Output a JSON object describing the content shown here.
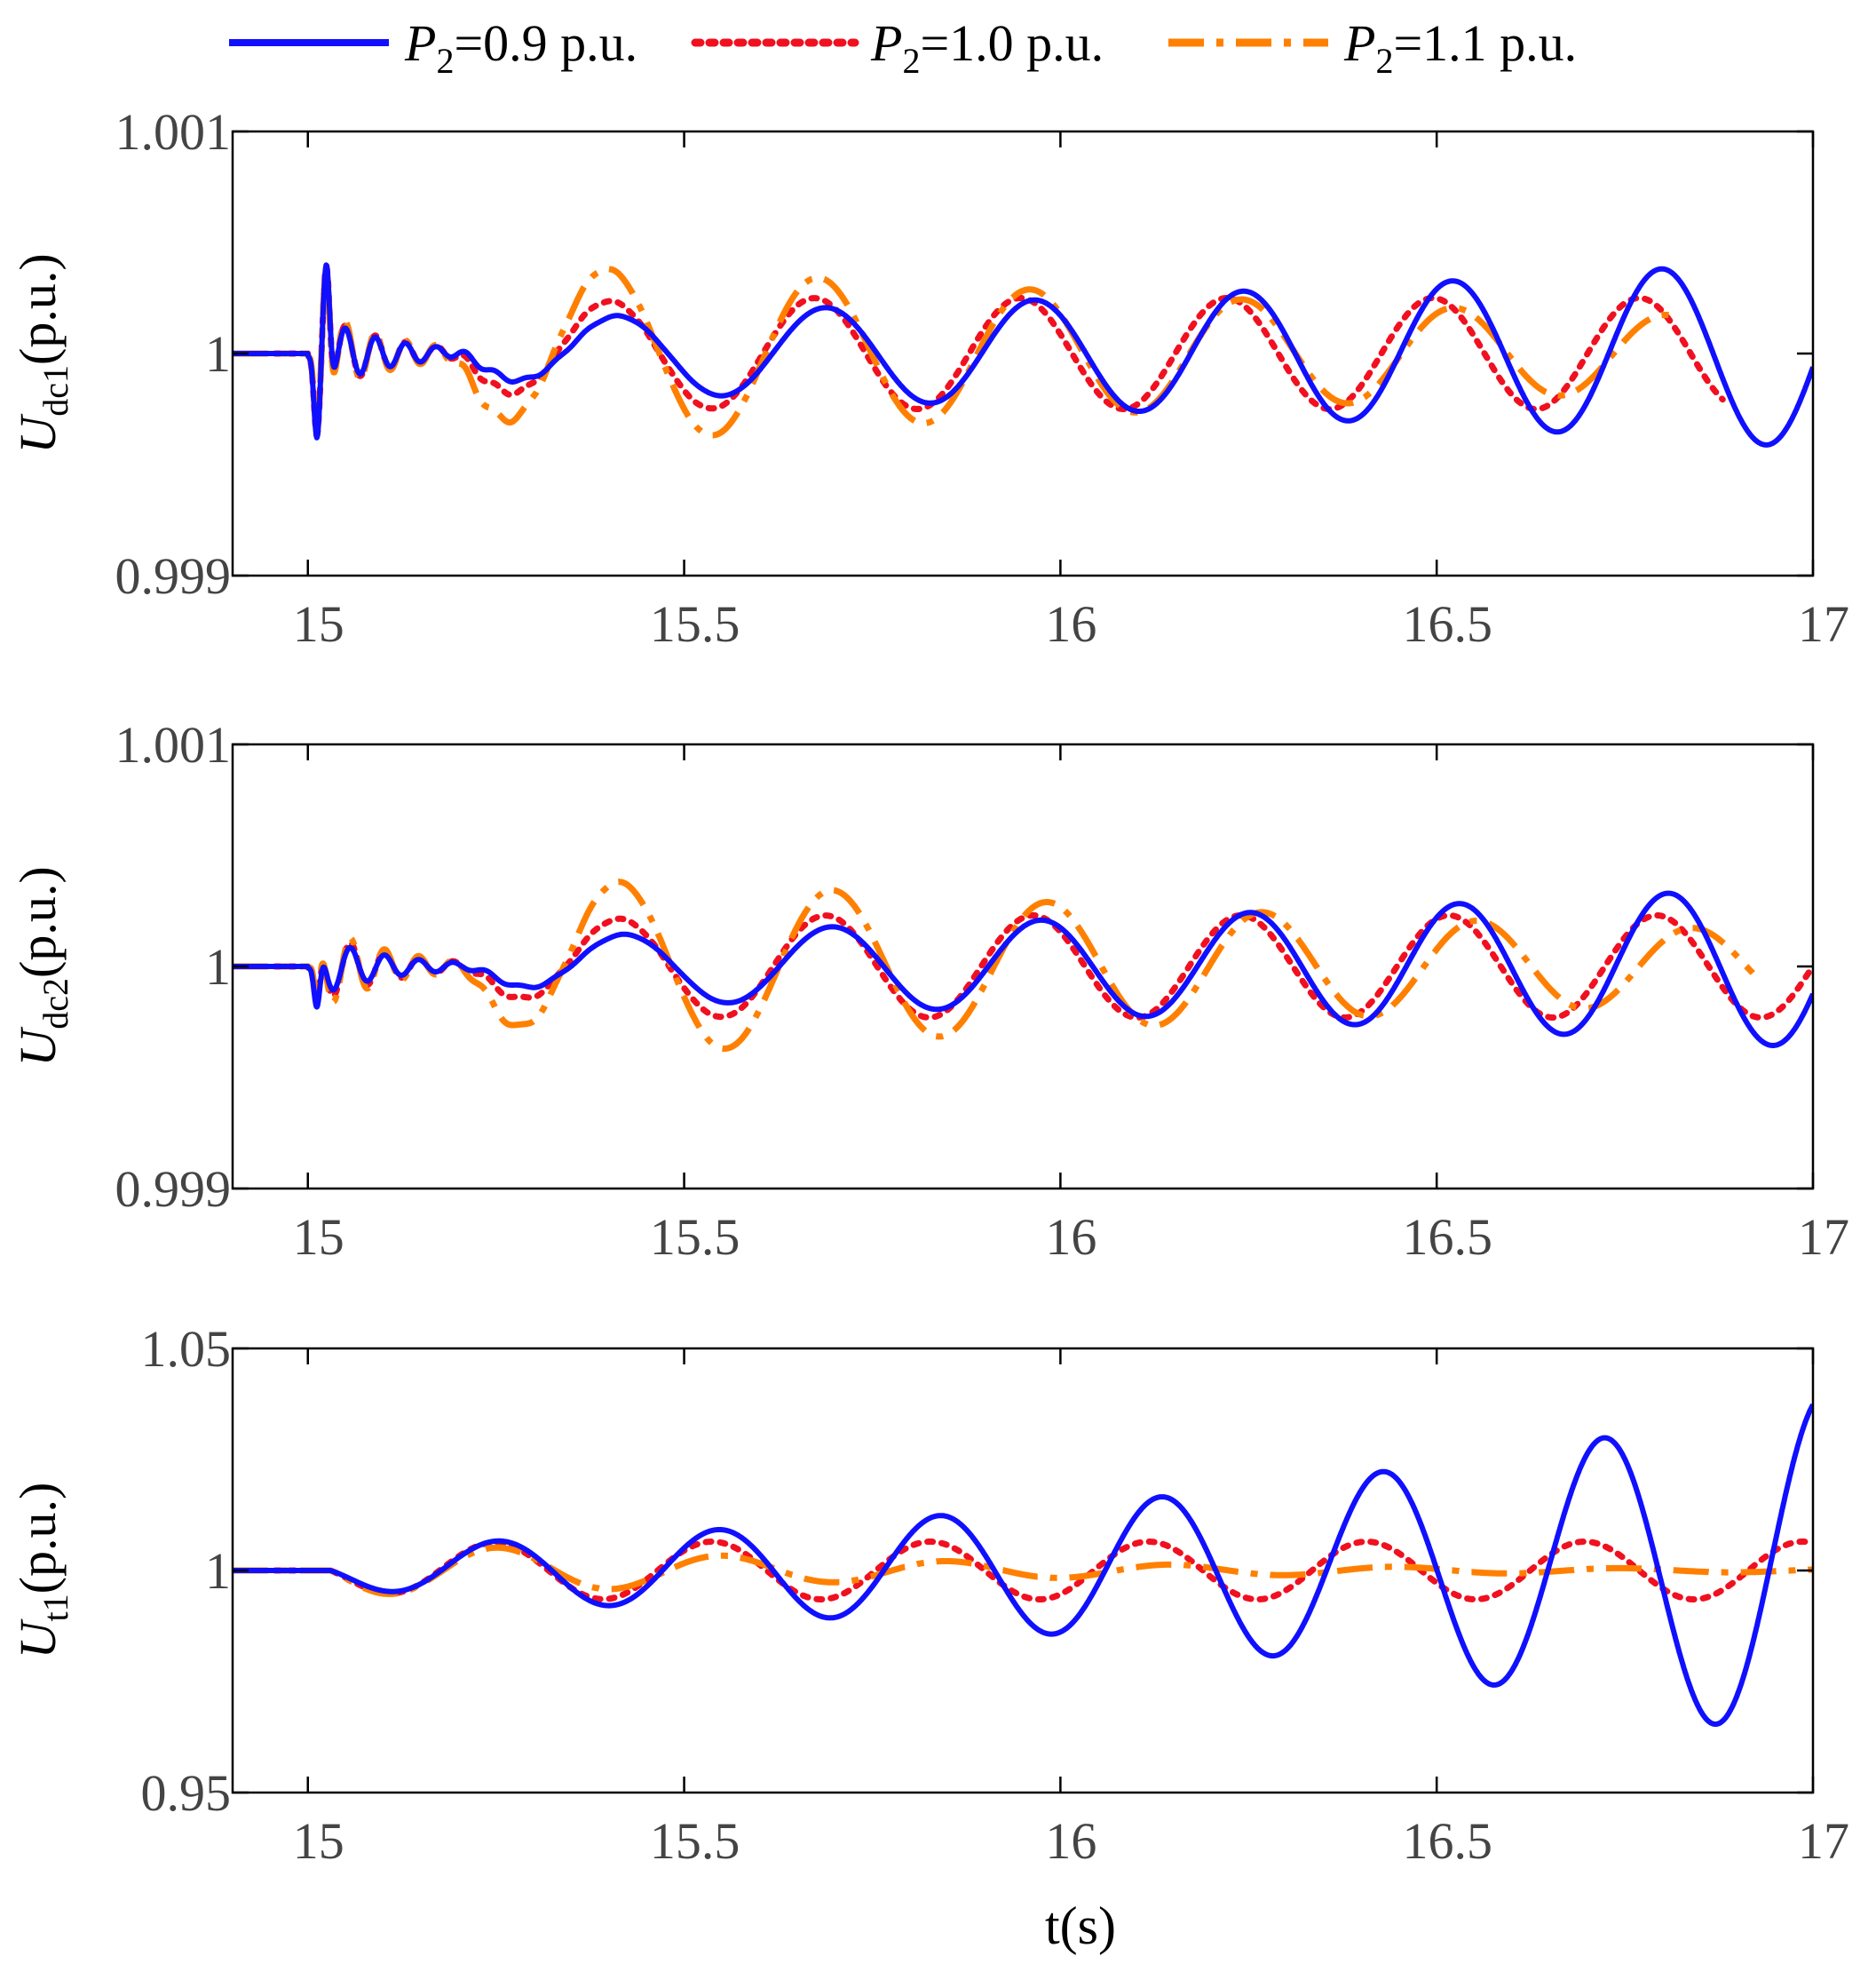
{
  "chart_data": {
    "type": "line",
    "xlabel": "t(s)",
    "xlim": [
      14.9,
      17.0
    ],
    "xticks": [
      15,
      15.5,
      16,
      16.5,
      17
    ],
    "xtick_labels": [
      "15",
      "15.5",
      "16",
      "16.5",
      "17"
    ],
    "legend": {
      "placement": "top",
      "entries": [
        {
          "id": "p09",
          "base": "P",
          "sub": "2",
          "rest": "=0.9 p.u.",
          "color": "#1010ff",
          "style": "solid"
        },
        {
          "id": "p10",
          "base": "P",
          "sub": "2",
          "rest": "=1.0 p.u.",
          "color": "#f01020",
          "style": "dotted"
        },
        {
          "id": "p11",
          "base": "P",
          "sub": "2",
          "rest": "=1.1 p.u.",
          "color": "#ff8000",
          "style": "dashdot"
        }
      ]
    },
    "panels": [
      {
        "id": "udc1",
        "ylabel_base": "U",
        "ylabel_sub": "dc1",
        "ylabel_rest": "(p.u.)",
        "ylim": [
          0.999,
          1.001
        ],
        "yticks": [
          0.999,
          1,
          1.001
        ],
        "ytick_labels": [
          "0.999",
          "1",
          "1.001"
        ],
        "t_end": [
          17.0,
          16.88,
          16.82
        ],
        "model": {
          "base": 1.0,
          "t0": 15.0,
          "dip": -0.0005,
          "spike": 0.0005,
          "ripple": [
            0.0002,
            0.00022,
            0.00025
          ],
          "ripple_f": 25,
          "amp": [
            0.00016,
            0.00025,
            0.00045
          ],
          "sigma": [
            0.55,
            0.0,
            -0.6
          ],
          "f": [
            3.6,
            3.65,
            3.55
          ],
          "phase": [
            -1.4,
            -1.3,
            -1.0
          ],
          "start": 0.22
        }
      },
      {
        "id": "udc2",
        "ylabel_base": "U",
        "ylabel_sub": "dc2",
        "ylabel_rest": "(p.u.)",
        "ylim": [
          0.999,
          1.001
        ],
        "yticks": [
          0.999,
          1,
          1.001
        ],
        "ytick_labels": [
          "0.999",
          "1",
          "1.001"
        ],
        "t_end": [
          17.0,
          17.0,
          16.92
        ],
        "model": {
          "base": 1.0,
          "t0": 15.0,
          "dip": -0.00028,
          "spike": 0.0,
          "ripple": [
            0.00016,
            0.0002,
            0.00024
          ],
          "ripple_f": 22,
          "amp": [
            0.00014,
            0.00023,
            0.00045
          ],
          "sigma": [
            0.55,
            0.0,
            -0.6
          ],
          "f": [
            3.6,
            3.62,
            3.5
          ],
          "phase": [
            -1.6,
            -1.5,
            -1.2
          ],
          "start": 0.25
        }
      },
      {
        "id": "ut1",
        "ylabel_base": "U",
        "ylabel_sub": "t1",
        "ylabel_rest": "(p.u.)",
        "ylim": [
          0.95,
          1.05
        ],
        "yticks": [
          0.95,
          1,
          1.05
        ],
        "ytick_labels": [
          "0.95",
          "1",
          "1.05"
        ],
        "t_end": [
          17.0,
          17.0,
          17.0
        ],
        "model": {
          "base": 1.0,
          "t0": 15.03,
          "dip": 0.0,
          "spike": 0.0,
          "ripple": [
            0.0,
            0.0,
            0.0
          ],
          "ripple_f": 0,
          "amp": [
            0.0055,
            0.0065,
            0.0075
          ],
          "sigma": [
            1.0,
            0.0,
            -1.55
          ],
          "f": [
            3.4,
            3.45,
            3.35
          ],
          "phase": [
            3.14159,
            3.14159,
            3.14159
          ],
          "start": 0.0
        }
      }
    ]
  }
}
